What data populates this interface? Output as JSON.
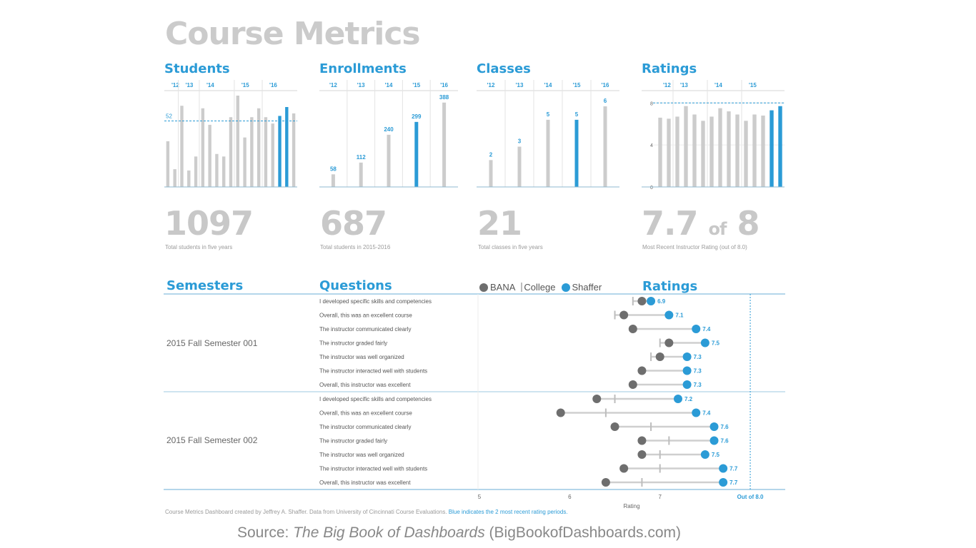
{
  "title": "Course Metrics",
  "colors": {
    "accent": "#2b9bd6",
    "bar": "#cccccc",
    "bana": "#6e6e6e",
    "college": "#bdbdbd",
    "title": "#cbcbcb"
  },
  "panels": {
    "students": {
      "heading": "Students",
      "big": "1097",
      "caption": "Total students in five years"
    },
    "enrollments": {
      "heading": "Enrollments",
      "big": "687",
      "caption": "Total students in 2015-2016"
    },
    "classes": {
      "heading": "Classes",
      "big": "21",
      "caption": "Total classes in five years"
    },
    "ratings": {
      "heading": "Ratings",
      "big_value": "7.7",
      "big_of": "of",
      "big_max": "8",
      "caption": "Most Recent Instructor Rating (out of 8.0)"
    }
  },
  "lower": {
    "semesters_heading": "Semesters",
    "questions_heading": "Questions",
    "ratings_heading": "Ratings",
    "legend": {
      "bana": "BANA",
      "college": "College",
      "shaffer": "Shaffer"
    },
    "semesters": [
      {
        "label": "2015 Fall Semester 001"
      },
      {
        "label": "2015 Fall Semester 002"
      }
    ]
  },
  "footer": {
    "text": "Course Metrics Dashboard created by Jeffrey A. Shaffer. Data from University of Cincinnati Course Evaluations.",
    "blue": "Blue indicates the 2 most recent rating periods."
  },
  "source": {
    "prefix": "Source: ",
    "book": "The Big Book of Dashboards",
    "suffix": " (BigBookofDashboards.com)"
  },
  "chart_data": [
    {
      "type": "bar",
      "title": "Students",
      "year_labels": [
        "'12",
        "'13",
        "'14",
        "'15",
        "'16"
      ],
      "year_counts": [
        2,
        3,
        5,
        4,
        5
      ],
      "values": [
        36,
        14,
        64,
        13,
        24,
        62,
        49,
        26,
        24,
        55,
        72,
        39,
        55,
        62,
        55,
        50,
        56,
        63,
        58
      ],
      "highlight": [
        16,
        17
      ],
      "reference_line": {
        "label": "52",
        "value": 52
      },
      "ylim": [
        0,
        72
      ]
    },
    {
      "type": "bar",
      "title": "Enrollments",
      "categories": [
        "'12",
        "'13",
        "'14",
        "'15",
        "'16"
      ],
      "values": [
        58,
        112,
        240,
        299,
        388
      ],
      "highlight": [
        3
      ],
      "ylim": [
        0,
        420
      ]
    },
    {
      "type": "bar",
      "title": "Classes",
      "categories": [
        "'12",
        "'13",
        "'14",
        "'15",
        "'16"
      ],
      "values": [
        2,
        3,
        5,
        5,
        6
      ],
      "highlight": [
        3
      ],
      "ylim": [
        0,
        6.8
      ]
    },
    {
      "type": "bar",
      "title": "Ratings",
      "year_labels": [
        "'12",
        "'13",
        "'14",
        "'15"
      ],
      "year_counts": [
        2,
        4,
        4,
        5
      ],
      "values": [
        6.6,
        6.5,
        6.7,
        7.7,
        6.9,
        6.3,
        6.7,
        7.5,
        7.2,
        6.9,
        6.3,
        6.9,
        6.8,
        7.3,
        7.7
      ],
      "highlight": [
        13,
        14
      ],
      "yticks": [
        0,
        4,
        8
      ],
      "reference_line": {
        "value": 8
      },
      "ylim": [
        0,
        8.7
      ]
    },
    {
      "type": "dot",
      "title": "Ratings",
      "xlabel": "Rating",
      "xticks": [
        "5",
        "6",
        "7"
      ],
      "xlim": [
        5,
        8.15
      ],
      "max_marker": {
        "value": 8,
        "label": "Out of 8.0"
      },
      "series_names": [
        "BANA",
        "College",
        "Shaffer"
      ],
      "groups": [
        {
          "semester": "2015 Fall Semester 001",
          "rows": [
            {
              "question": "I developed specific skills and competencies",
              "bana": 6.8,
              "college": 6.7,
              "shaffer": 6.9,
              "label": "6.9"
            },
            {
              "question": "Overall, this was an excellent course",
              "bana": 6.6,
              "college": 6.5,
              "shaffer": 7.1,
              "label": "7.1"
            },
            {
              "question": "The instructor communicated clearly",
              "bana": 6.7,
              "college": 6.7,
              "shaffer": 7.4,
              "label": "7.4"
            },
            {
              "question": "The instructor graded fairly",
              "bana": 7.1,
              "college": 7.0,
              "shaffer": 7.5,
              "label": "7.5"
            },
            {
              "question": "The instructor was well organized",
              "bana": 7.0,
              "college": 6.9,
              "shaffer": 7.3,
              "label": "7.3"
            },
            {
              "question": "The instructor interacted well with students",
              "bana": 6.8,
              "college": 6.8,
              "shaffer": 7.3,
              "label": "7.3"
            },
            {
              "question": "Overall, this instructor was excellent",
              "bana": 6.7,
              "college": 6.7,
              "shaffer": 7.3,
              "label": "7.3"
            }
          ]
        },
        {
          "semester": "2015 Fall Semester 002",
          "rows": [
            {
              "question": "I developed specific skills and competencies",
              "bana": 6.3,
              "college": 6.5,
              "shaffer": 7.2,
              "label": "7.2"
            },
            {
              "question": "Overall, this was an excellent course",
              "bana": 5.9,
              "college": 6.4,
              "shaffer": 7.4,
              "label": "7.4"
            },
            {
              "question": "The instructor communicated clearly",
              "bana": 6.5,
              "college": 6.9,
              "shaffer": 7.6,
              "label": "7.6"
            },
            {
              "question": "The instructor graded fairly",
              "bana": 6.8,
              "college": 7.1,
              "shaffer": 7.6,
              "label": "7.6"
            },
            {
              "question": "The instructor was well organized",
              "bana": 6.8,
              "college": 7.0,
              "shaffer": 7.5,
              "label": "7.5"
            },
            {
              "question": "The instructor interacted well with students",
              "bana": 6.6,
              "college": 7.0,
              "shaffer": 7.7,
              "label": "7.7"
            },
            {
              "question": "Overall, this instructor was excellent",
              "bana": 6.4,
              "college": 6.8,
              "shaffer": 7.7,
              "label": "7.7"
            }
          ]
        }
      ]
    }
  ]
}
